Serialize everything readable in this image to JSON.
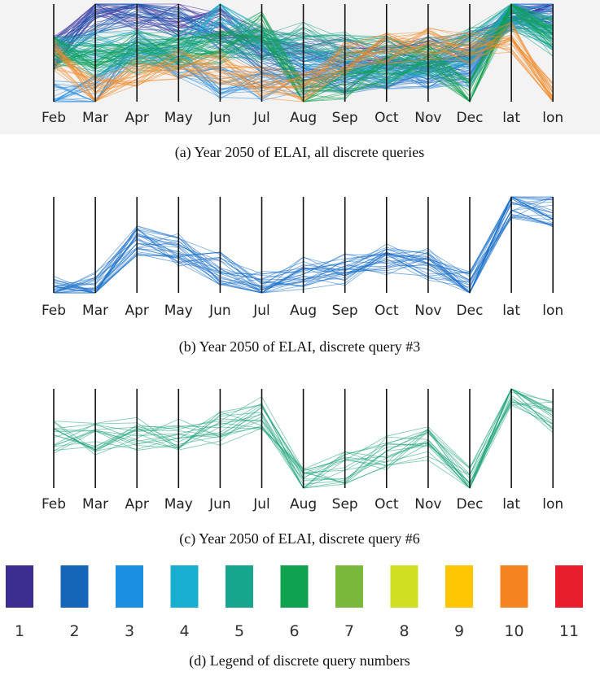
{
  "chart_data": [
    {
      "type": "parallel-coordinates",
      "caption": "(a)  Year 2050 of ELAI, all discrete queries",
      "axes": [
        "Feb",
        "Mar",
        "Apr",
        "May",
        "Jun",
        "Jul",
        "Aug",
        "Sep",
        "Oct",
        "Nov",
        "Dec",
        "lat",
        "lon"
      ],
      "series": [
        {
          "query": 1,
          "color": "#4a2f9c",
          "values": [
            0.5,
            0.95,
            0.9,
            0.85,
            0.8,
            0.6,
            0.55,
            0.5,
            0.5,
            0.5,
            0.55,
            0.9,
            0.95
          ]
        },
        {
          "query": 2,
          "color": "#1a5fb4",
          "values": [
            0.5,
            0.85,
            0.95,
            0.8,
            0.7,
            0.45,
            0.3,
            0.25,
            0.3,
            0.3,
            0.35,
            0.95,
            0.9
          ]
        },
        {
          "query": 3,
          "color": "#2f8fe0",
          "values": [
            0.05,
            0.1,
            0.55,
            0.4,
            0.2,
            0.15,
            0.2,
            0.25,
            0.3,
            0.3,
            0.3,
            0.95,
            0.85
          ]
        },
        {
          "query": 4,
          "color": "#22aacc",
          "values": [
            0.5,
            0.55,
            0.6,
            0.55,
            0.95,
            0.6,
            0.5,
            0.4,
            0.35,
            0.4,
            0.5,
            0.95,
            0.7
          ]
        },
        {
          "query": 5,
          "color": "#1aa58a",
          "values": [
            0.5,
            0.4,
            0.45,
            0.5,
            0.55,
            0.6,
            0.65,
            0.55,
            0.5,
            0.5,
            0.6,
            0.9,
            0.6
          ]
        },
        {
          "query": 6,
          "color": "#10a050",
          "values": [
            0.5,
            0.5,
            0.55,
            0.55,
            0.55,
            0.75,
            0.05,
            0.2,
            0.3,
            0.45,
            0.05,
            1.0,
            0.7
          ]
        },
        {
          "query": 10,
          "color": "#f08a2a",
          "values": [
            0.5,
            0.1,
            0.3,
            0.4,
            0.35,
            0.2,
            0.15,
            0.45,
            0.55,
            0.6,
            0.55,
            0.65,
            0.05
          ]
        }
      ]
    },
    {
      "type": "parallel-coordinates",
      "caption": "(b)  Year 2050 of ELAI, discrete query #3",
      "axes": [
        "Feb",
        "Mar",
        "Apr",
        "May",
        "Jun",
        "Jul",
        "Aug",
        "Sep",
        "Oct",
        "Nov",
        "Dec",
        "lat",
        "lon"
      ],
      "series": [
        {
          "query": 3,
          "color": "#1a6fc9",
          "values": [
            0.0,
            0.05,
            0.55,
            0.45,
            0.25,
            0.05,
            0.2,
            0.25,
            0.35,
            0.3,
            0.05,
            0.95,
            0.85
          ]
        }
      ]
    },
    {
      "type": "parallel-coordinates",
      "caption": "(c)  Year 2050 of ELAI, discrete query #6",
      "axes": [
        "Feb",
        "Mar",
        "Apr",
        "May",
        "Jun",
        "Jul",
        "Aug",
        "Sep",
        "Oct",
        "Nov",
        "Dec",
        "lat",
        "lon"
      ],
      "series": [
        {
          "query": 6,
          "color": "#1ea37a",
          "values": [
            0.5,
            0.5,
            0.55,
            0.55,
            0.6,
            0.75,
            0.05,
            0.2,
            0.35,
            0.45,
            0.05,
            1.0,
            0.7
          ]
        }
      ]
    }
  ],
  "legend": {
    "caption": "(d)  Legend of discrete query numbers",
    "items": [
      {
        "label": "1",
        "color": "#3a2d8f"
      },
      {
        "label": "2",
        "color": "#1565b8"
      },
      {
        "label": "3",
        "color": "#1c90e0"
      },
      {
        "label": "4",
        "color": "#17aed0"
      },
      {
        "label": "5",
        "color": "#16a58f"
      },
      {
        "label": "6",
        "color": "#10a34f"
      },
      {
        "label": "7",
        "color": "#7ab93b"
      },
      {
        "label": "8",
        "color": "#d1df22"
      },
      {
        "label": "9",
        "color": "#ffc600"
      },
      {
        "label": "10",
        "color": "#f58420"
      },
      {
        "label": "11",
        "color": "#ea1d2b"
      }
    ]
  }
}
